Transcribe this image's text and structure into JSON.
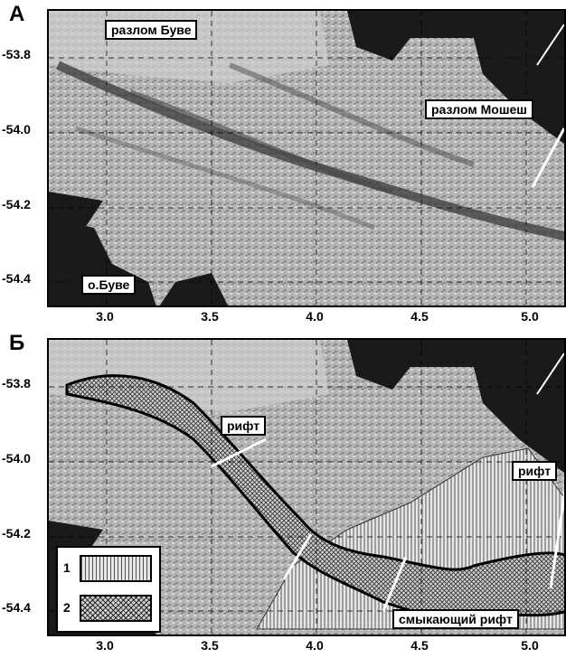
{
  "panel_a": {
    "label": "А",
    "labels": {
      "fault_bouvet": "разлом Буве",
      "fault_moshesh": "разлом Мошеш",
      "island": "о.Буве"
    }
  },
  "panel_b": {
    "label": "Б",
    "labels": {
      "rift_left": "рифт",
      "rift_right": "рифт",
      "closing_rift": "смыкающий рифт"
    },
    "legend": {
      "item1": "1",
      "item2": "2"
    }
  },
  "axes": {
    "y_ticks": [
      "-53.8",
      "-54.0",
      "-54.2",
      "-54.4"
    ],
    "x_ticks": [
      "3.0",
      "3.5",
      "4.0",
      "4.5",
      "5.0"
    ]
  },
  "colors": {
    "relief_light": "#c8c8c8",
    "relief_mid": "#9a9a9a",
    "relief_dark": "#555555",
    "nodata": "#1a1a1a"
  }
}
